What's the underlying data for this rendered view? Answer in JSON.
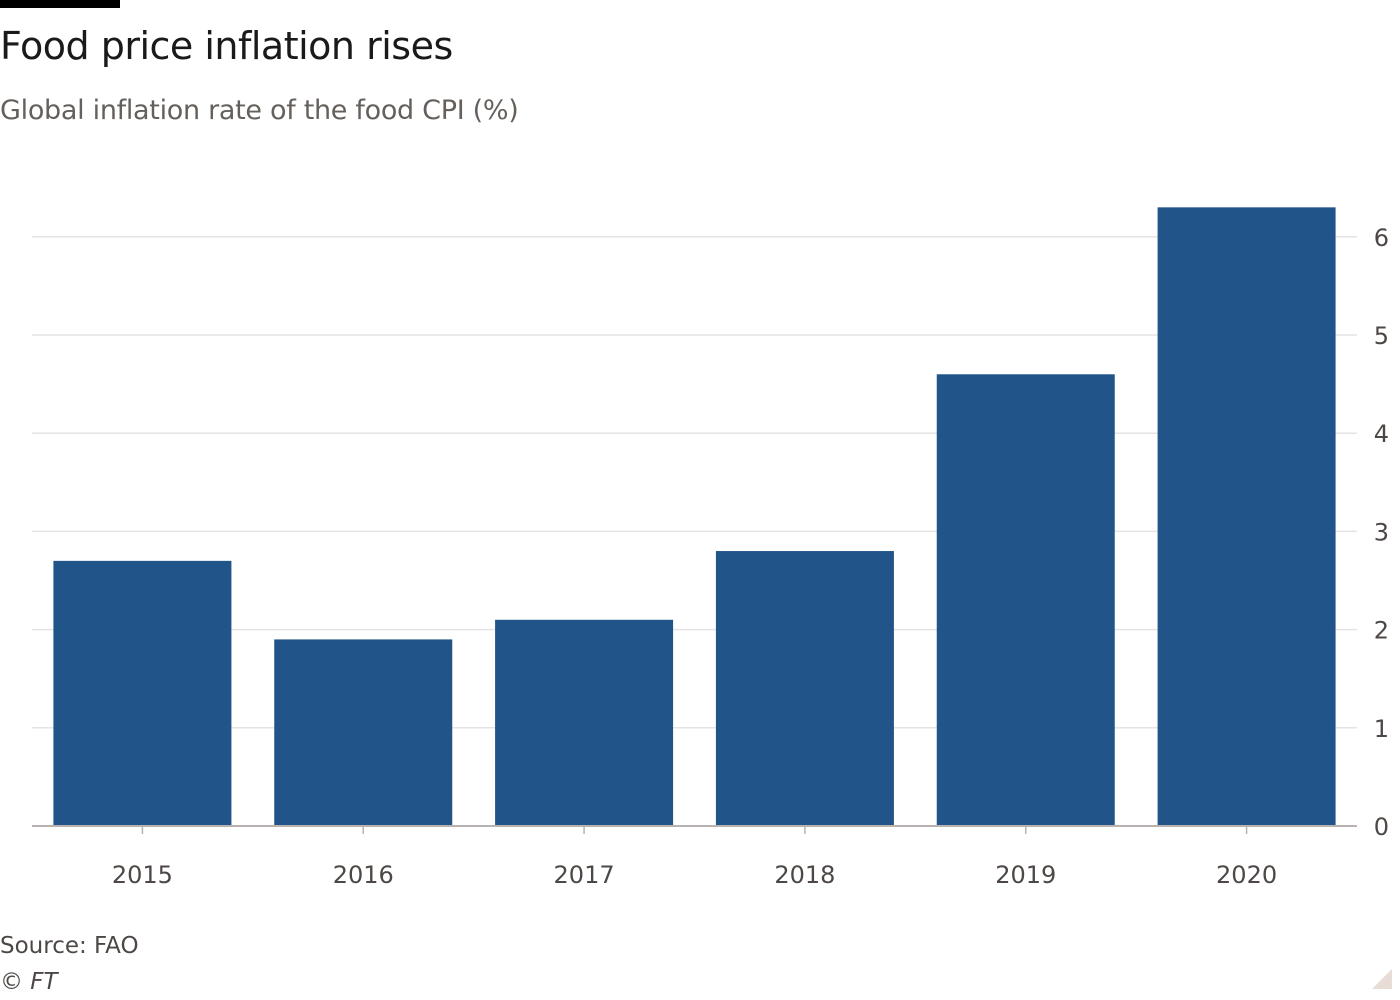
{
  "header": {
    "title": "Food price inflation rises",
    "subtitle": "Global inflation rate of the food CPI (%)"
  },
  "footer": {
    "source": "Source: FAO",
    "copyright": "© FT"
  },
  "colors": {
    "bar": "#215489",
    "gridline": "#e6e3e1",
    "axis": "#b8b3b0",
    "tick_label": "#4d4845"
  },
  "chart_data": {
    "type": "bar",
    "categories": [
      "2015",
      "2016",
      "2017",
      "2018",
      "2019",
      "2020"
    ],
    "values": [
      2.7,
      1.9,
      2.1,
      2.8,
      4.6,
      6.3
    ],
    "title": "Food price inflation rises",
    "subtitle": "Global inflation rate of the food CPI (%)",
    "xlabel": "",
    "ylabel": "",
    "ylim": [
      0,
      6
    ],
    "yticks": [
      0,
      1,
      2,
      3,
      4,
      5,
      6
    ],
    "y_axis_side": "right",
    "grid": true,
    "legend": "none"
  }
}
